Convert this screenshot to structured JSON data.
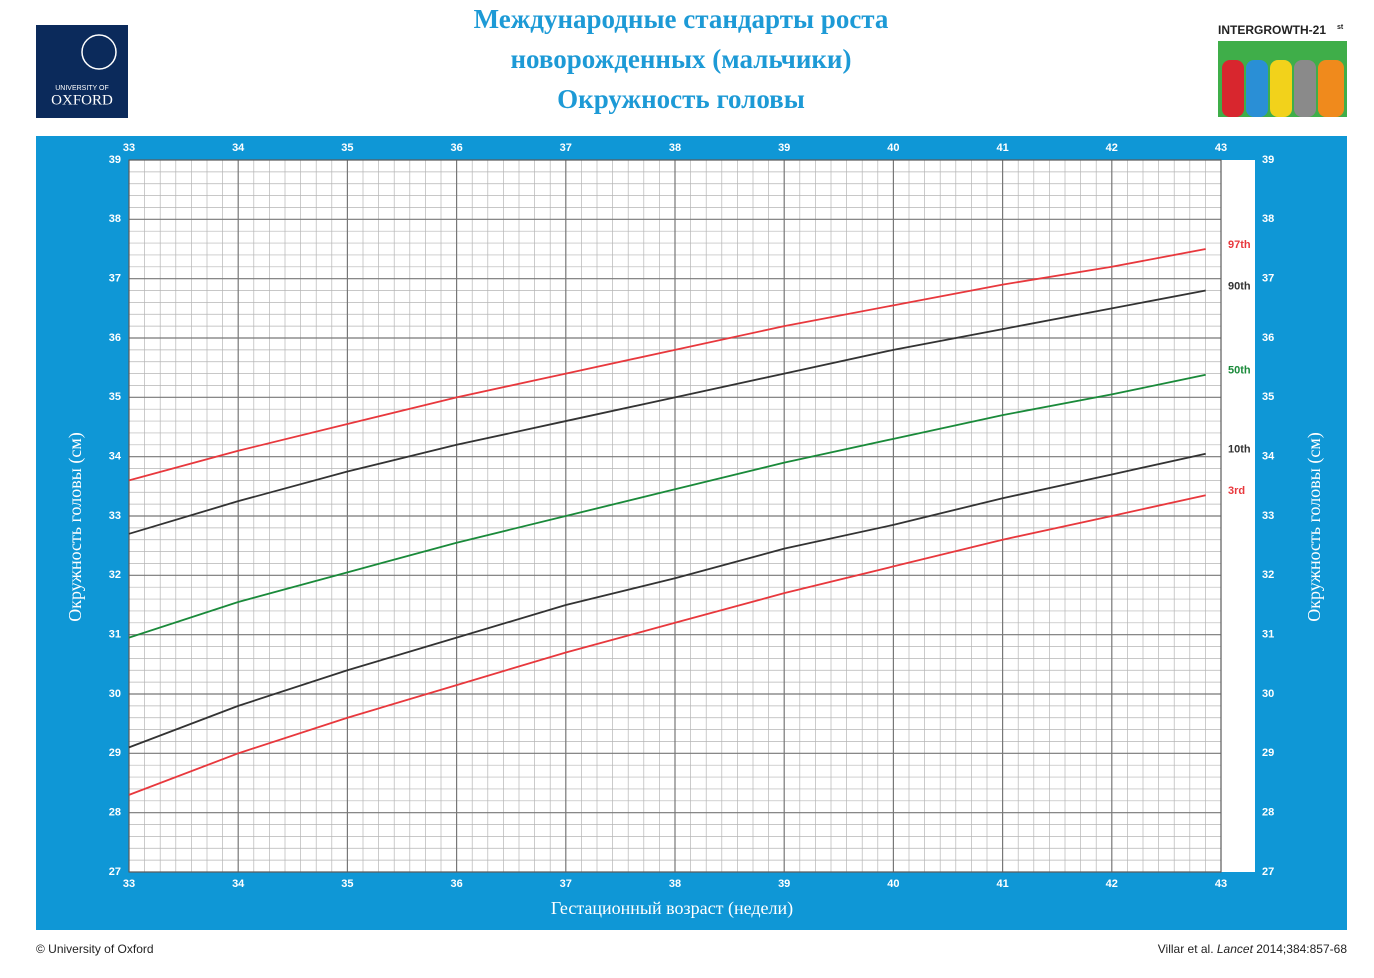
{
  "chart_data": {
    "type": "line",
    "title": [
      "Международные стандарты роста",
      "новорожденных (мальчики)",
      "Окружность головы"
    ],
    "xlabel": "Гестационный возраст  (недели)",
    "ylabel": "Окружность головы (см)",
    "x": [
      33,
      34,
      35,
      36,
      37,
      38,
      39,
      40,
      41,
      42,
      42.86
    ],
    "series": [
      {
        "name": "97th",
        "color": "#e8383d",
        "values": [
          33.6,
          34.1,
          34.55,
          35.0,
          35.4,
          35.8,
          36.2,
          36.55,
          36.9,
          37.2,
          37.5
        ]
      },
      {
        "name": "90th",
        "color": "#333333",
        "values": [
          32.7,
          33.25,
          33.75,
          34.2,
          34.6,
          35.0,
          35.4,
          35.8,
          36.15,
          36.5,
          36.8
        ]
      },
      {
        "name": "50th",
        "color": "#1a8a3a",
        "values": [
          30.95,
          31.55,
          32.05,
          32.55,
          33.0,
          33.45,
          33.9,
          34.3,
          34.7,
          35.05,
          35.38
        ]
      },
      {
        "name": "10th",
        "color": "#333333",
        "values": [
          29.1,
          29.8,
          30.4,
          30.95,
          31.5,
          31.95,
          32.45,
          32.85,
          33.3,
          33.7,
          34.05
        ]
      },
      {
        "name": "3rd",
        "color": "#e8383d",
        "values": [
          28.3,
          29.0,
          29.6,
          30.15,
          30.7,
          31.2,
          31.7,
          32.15,
          32.6,
          33.0,
          33.35
        ]
      }
    ],
    "xlim": [
      33,
      43
    ],
    "xticks": [
      33,
      34,
      35,
      36,
      37,
      38,
      39,
      40,
      41,
      42,
      43
    ],
    "ylim": [
      27,
      39
    ],
    "yticks": [
      27,
      28,
      29,
      30,
      31,
      32,
      33,
      34,
      35,
      36,
      37,
      38,
      39
    ],
    "grid": true
  },
  "logos": {
    "oxford_top": "UNIVERSITY OF",
    "oxford_name": "OXFORD",
    "intergrowth": "INTERGROWTH-21",
    "intergrowth_sup": "st"
  },
  "footer": {
    "left": "© University of Oxford",
    "right_before": "Villar et al. ",
    "right_italic": "Lancet",
    "right_after": " 2014;384:857-68"
  }
}
